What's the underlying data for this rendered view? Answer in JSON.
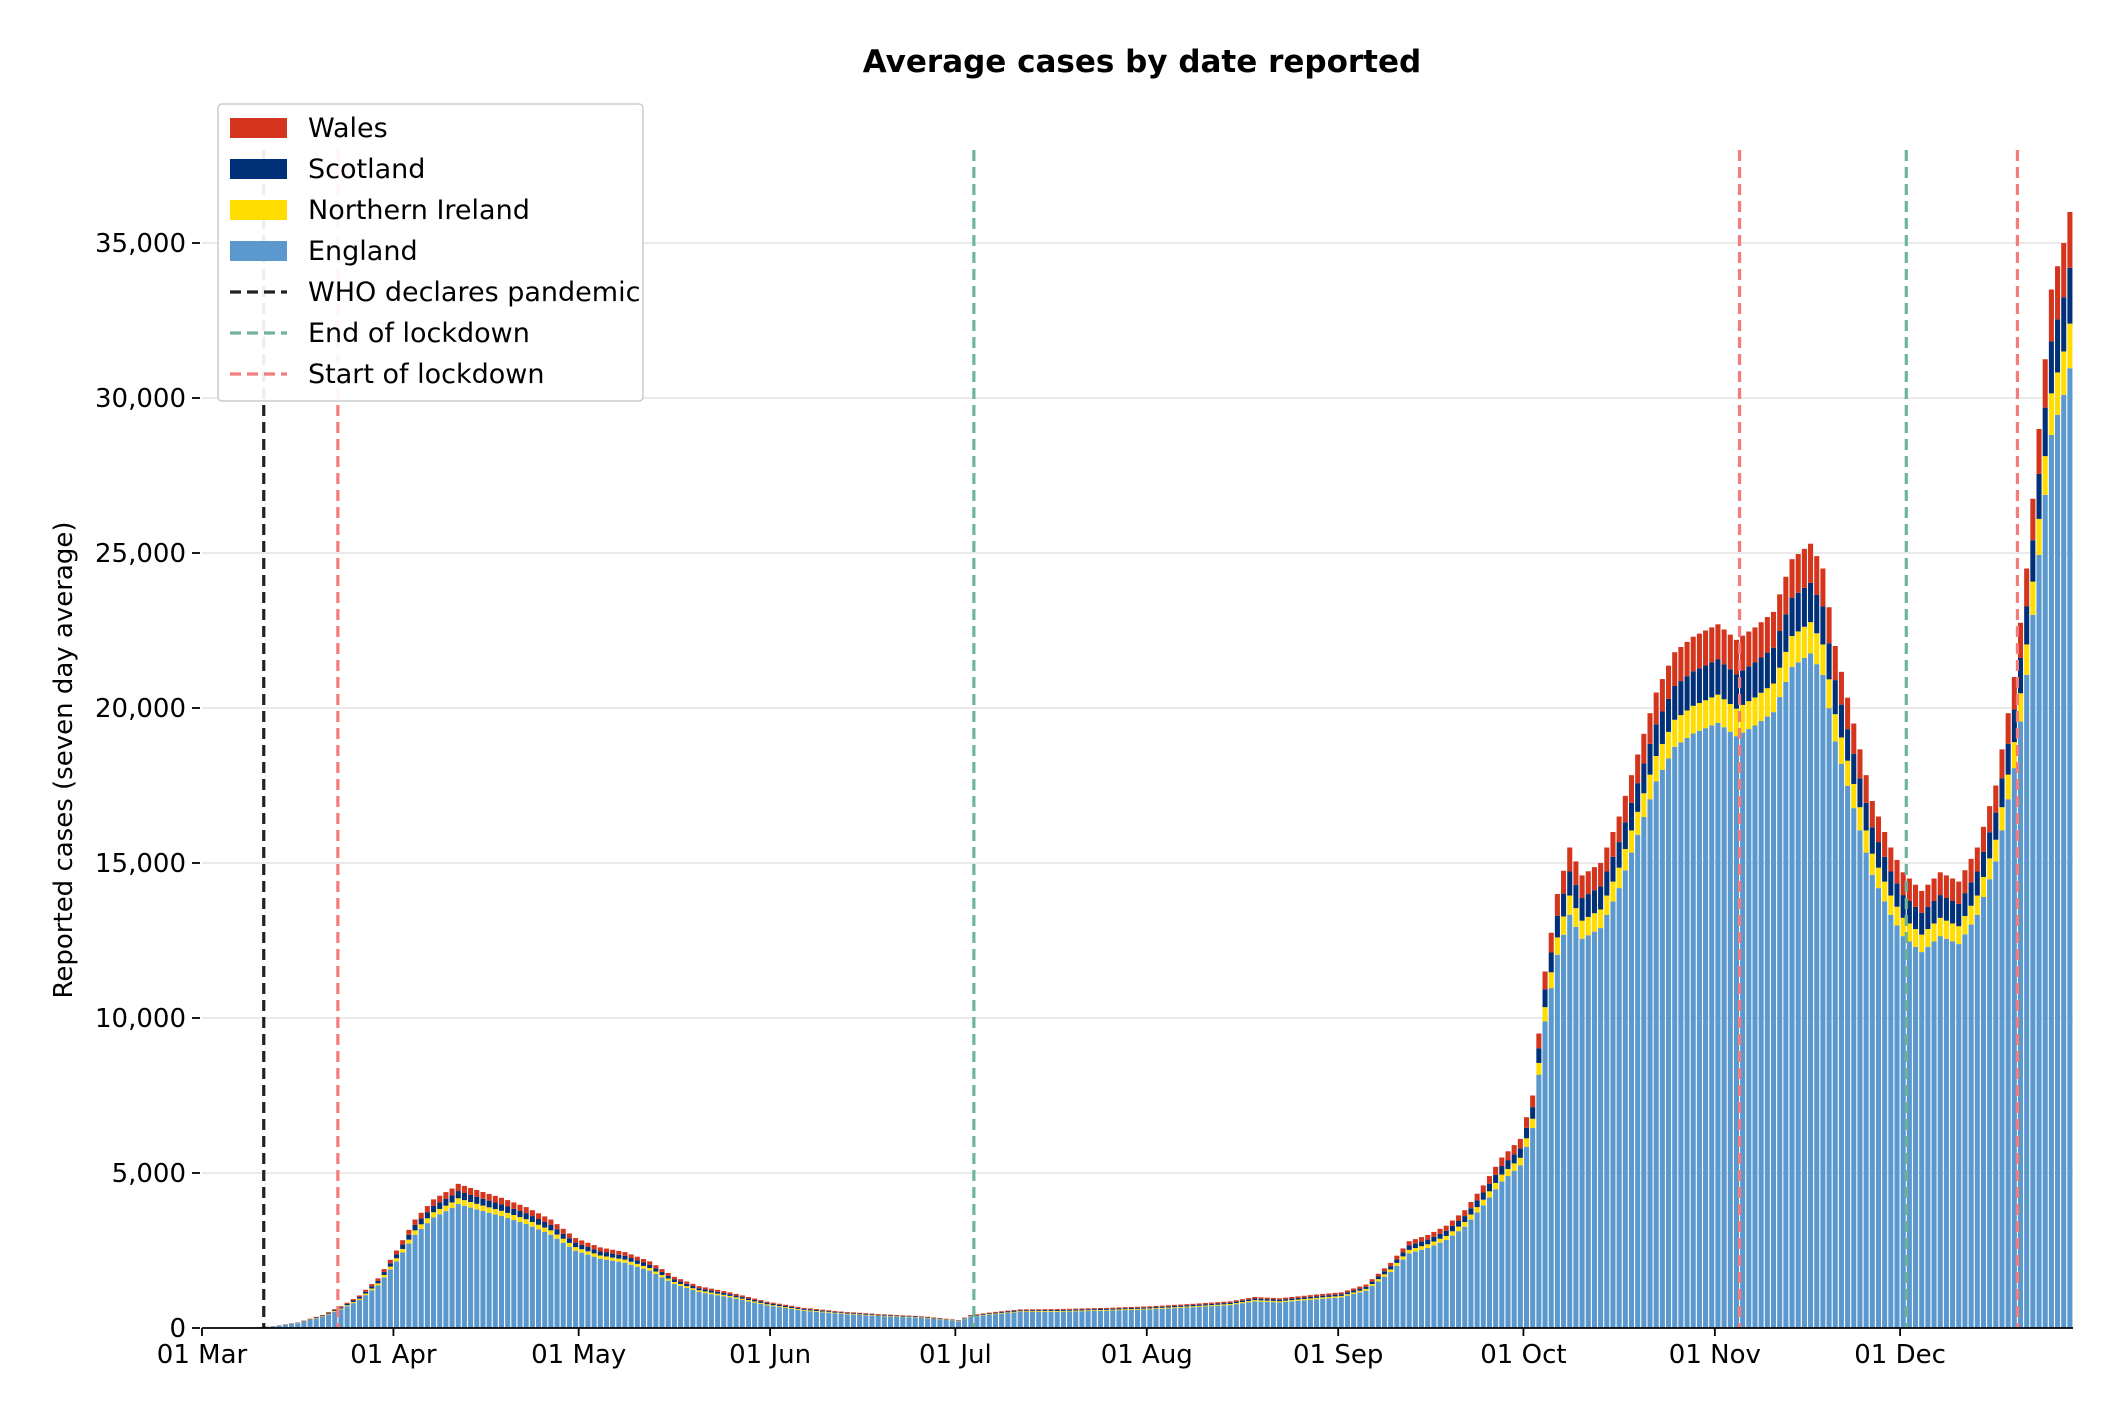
{
  "chart_data": {
    "type": "bar",
    "stacked": true,
    "title": "Average cases by date reported",
    "xlabel": "",
    "ylabel": "Reported cases (seven day average)",
    "ylim": [
      0,
      38000
    ],
    "yticks": [
      0,
      5000,
      10000,
      15000,
      20000,
      25000,
      30000,
      35000
    ],
    "ytick_labels": [
      "0",
      "5,000",
      "10,000",
      "15,000",
      "20,000",
      "25,000",
      "30,000",
      "35,000"
    ],
    "x_start": "2020-03-01",
    "x_end": "2020-12-29",
    "xticks": [
      "2020-03-01",
      "2020-04-01",
      "2020-05-01",
      "2020-06-01",
      "2020-07-01",
      "2020-08-01",
      "2020-09-01",
      "2020-10-01",
      "2020-11-01",
      "2020-12-01"
    ],
    "xtick_labels": [
      "01 Mar",
      "01 Apr",
      "01 May",
      "01 Jun",
      "01 Jul",
      "01 Aug",
      "01 Sep",
      "01 Oct",
      "01 Nov",
      "01 Dec"
    ],
    "grid": "horizontal",
    "legend_position": "top-left",
    "total_keypoints": [
      [
        "2020-03-01",
        0
      ],
      [
        "2020-03-08",
        10
      ],
      [
        "2020-03-12",
        60
      ],
      [
        "2020-03-16",
        180
      ],
      [
        "2020-03-20",
        420
      ],
      [
        "2020-03-23",
        700
      ],
      [
        "2020-03-26",
        1050
      ],
      [
        "2020-03-29",
        1600
      ],
      [
        "2020-04-01",
        2500
      ],
      [
        "2020-04-04",
        3500
      ],
      [
        "2020-04-07",
        4150
      ],
      [
        "2020-04-10",
        4500
      ],
      [
        "2020-04-11",
        4650
      ],
      [
        "2020-04-14",
        4450
      ],
      [
        "2020-04-18",
        4200
      ],
      [
        "2020-04-22",
        3900
      ],
      [
        "2020-04-26",
        3500
      ],
      [
        "2020-04-30",
        2900
      ],
      [
        "2020-05-04",
        2600
      ],
      [
        "2020-05-08",
        2450
      ],
      [
        "2020-05-12",
        2150
      ],
      [
        "2020-05-16",
        1650
      ],
      [
        "2020-05-20",
        1350
      ],
      [
        "2020-05-25",
        1150
      ],
      [
        "2020-05-31",
        850
      ],
      [
        "2020-06-06",
        650
      ],
      [
        "2020-06-12",
        530
      ],
      [
        "2020-06-18",
        450
      ],
      [
        "2020-06-25",
        380
      ],
      [
        "2020-06-30",
        280
      ],
      [
        "2020-07-01",
        250
      ],
      [
        "2020-07-03",
        420
      ],
      [
        "2020-07-07",
        520
      ],
      [
        "2020-07-11",
        600
      ],
      [
        "2020-07-17",
        610
      ],
      [
        "2020-07-25",
        650
      ],
      [
        "2020-08-01",
        700
      ],
      [
        "2020-08-08",
        780
      ],
      [
        "2020-08-14",
        860
      ],
      [
        "2020-08-18",
        1000
      ],
      [
        "2020-08-22",
        960
      ],
      [
        "2020-08-28",
        1080
      ],
      [
        "2020-09-01",
        1150
      ],
      [
        "2020-09-05",
        1400
      ],
      [
        "2020-09-09",
        2100
      ],
      [
        "2020-09-12",
        2800
      ],
      [
        "2020-09-15",
        3000
      ],
      [
        "2020-09-18",
        3300
      ],
      [
        "2020-09-21",
        3800
      ],
      [
        "2020-09-24",
        4600
      ],
      [
        "2020-09-27",
        5500
      ],
      [
        "2020-09-30",
        6100
      ],
      [
        "2020-10-02",
        7500
      ],
      [
        "2020-10-04",
        11500
      ],
      [
        "2020-10-06",
        14000
      ],
      [
        "2020-10-08",
        15500
      ],
      [
        "2020-10-10",
        14600
      ],
      [
        "2020-10-13",
        15000
      ],
      [
        "2020-10-16",
        16500
      ],
      [
        "2020-10-19",
        18500
      ],
      [
        "2020-10-22",
        20500
      ],
      [
        "2020-10-25",
        21800
      ],
      [
        "2020-10-28",
        22300
      ],
      [
        "2020-11-01",
        22700
      ],
      [
        "2020-11-04",
        22200
      ],
      [
        "2020-11-07",
        22600
      ],
      [
        "2020-11-10",
        23100
      ],
      [
        "2020-11-13",
        24800
      ],
      [
        "2020-11-16",
        25300
      ],
      [
        "2020-11-18",
        24500
      ],
      [
        "2020-11-20",
        22000
      ],
      [
        "2020-11-23",
        19500
      ],
      [
        "2020-11-26",
        17000
      ],
      [
        "2020-11-29",
        15500
      ],
      [
        "2020-12-01",
        14700
      ],
      [
        "2020-12-04",
        14100
      ],
      [
        "2020-12-07",
        14700
      ],
      [
        "2020-12-10",
        14400
      ],
      [
        "2020-12-13",
        15500
      ],
      [
        "2020-12-16",
        17500
      ],
      [
        "2020-12-19",
        21000
      ],
      [
        "2020-12-21",
        24500
      ],
      [
        "2020-12-23",
        29000
      ],
      [
        "2020-12-25",
        33500
      ],
      [
        "2020-12-27",
        35000
      ],
      [
        "2020-12-28",
        36000
      ]
    ],
    "series": [
      {
        "name": "England",
        "color": "#5b98cd",
        "share": 0.86
      },
      {
        "name": "Northern Ireland",
        "color": "#ffdd00",
        "share": 0.04
      },
      {
        "name": "Scotland",
        "color": "#003078",
        "share": 0.05
      },
      {
        "name": "Wales",
        "color": "#d4351c",
        "share": 0.05
      }
    ],
    "vlines": [
      {
        "name": "WHO declares pandemic",
        "date": "2020-03-11",
        "color": "#222222",
        "style": "dashed"
      },
      {
        "name": "Start of lockdown",
        "date": "2020-03-23",
        "color": "#f47c7c",
        "style": "dashed"
      },
      {
        "name": "End of lockdown",
        "date": "2020-07-04",
        "color": "#6fb39b",
        "style": "dashed"
      },
      {
        "name": "Start of lockdown",
        "date": "2020-11-05",
        "color": "#f47c7c",
        "style": "dashed"
      },
      {
        "name": "End of lockdown",
        "date": "2020-12-02",
        "color": "#6fb39b",
        "style": "dashed"
      },
      {
        "name": "Start of lockdown",
        "date": "2020-12-20",
        "color": "#f47c7c",
        "style": "dashed"
      }
    ],
    "legend": [
      {
        "label": "Wales",
        "kind": "patch",
        "color": "#d4351c"
      },
      {
        "label": "Scotland",
        "kind": "patch",
        "color": "#003078"
      },
      {
        "label": "Northern Ireland",
        "kind": "patch",
        "color": "#ffdd00"
      },
      {
        "label": "England",
        "kind": "patch",
        "color": "#5b98cd"
      },
      {
        "label": "WHO declares pandemic",
        "kind": "line",
        "color": "#222222"
      },
      {
        "label": "End of lockdown",
        "kind": "line",
        "color": "#6fb39b"
      },
      {
        "label": "Start of lockdown",
        "kind": "line",
        "color": "#f47c7c"
      }
    ]
  }
}
